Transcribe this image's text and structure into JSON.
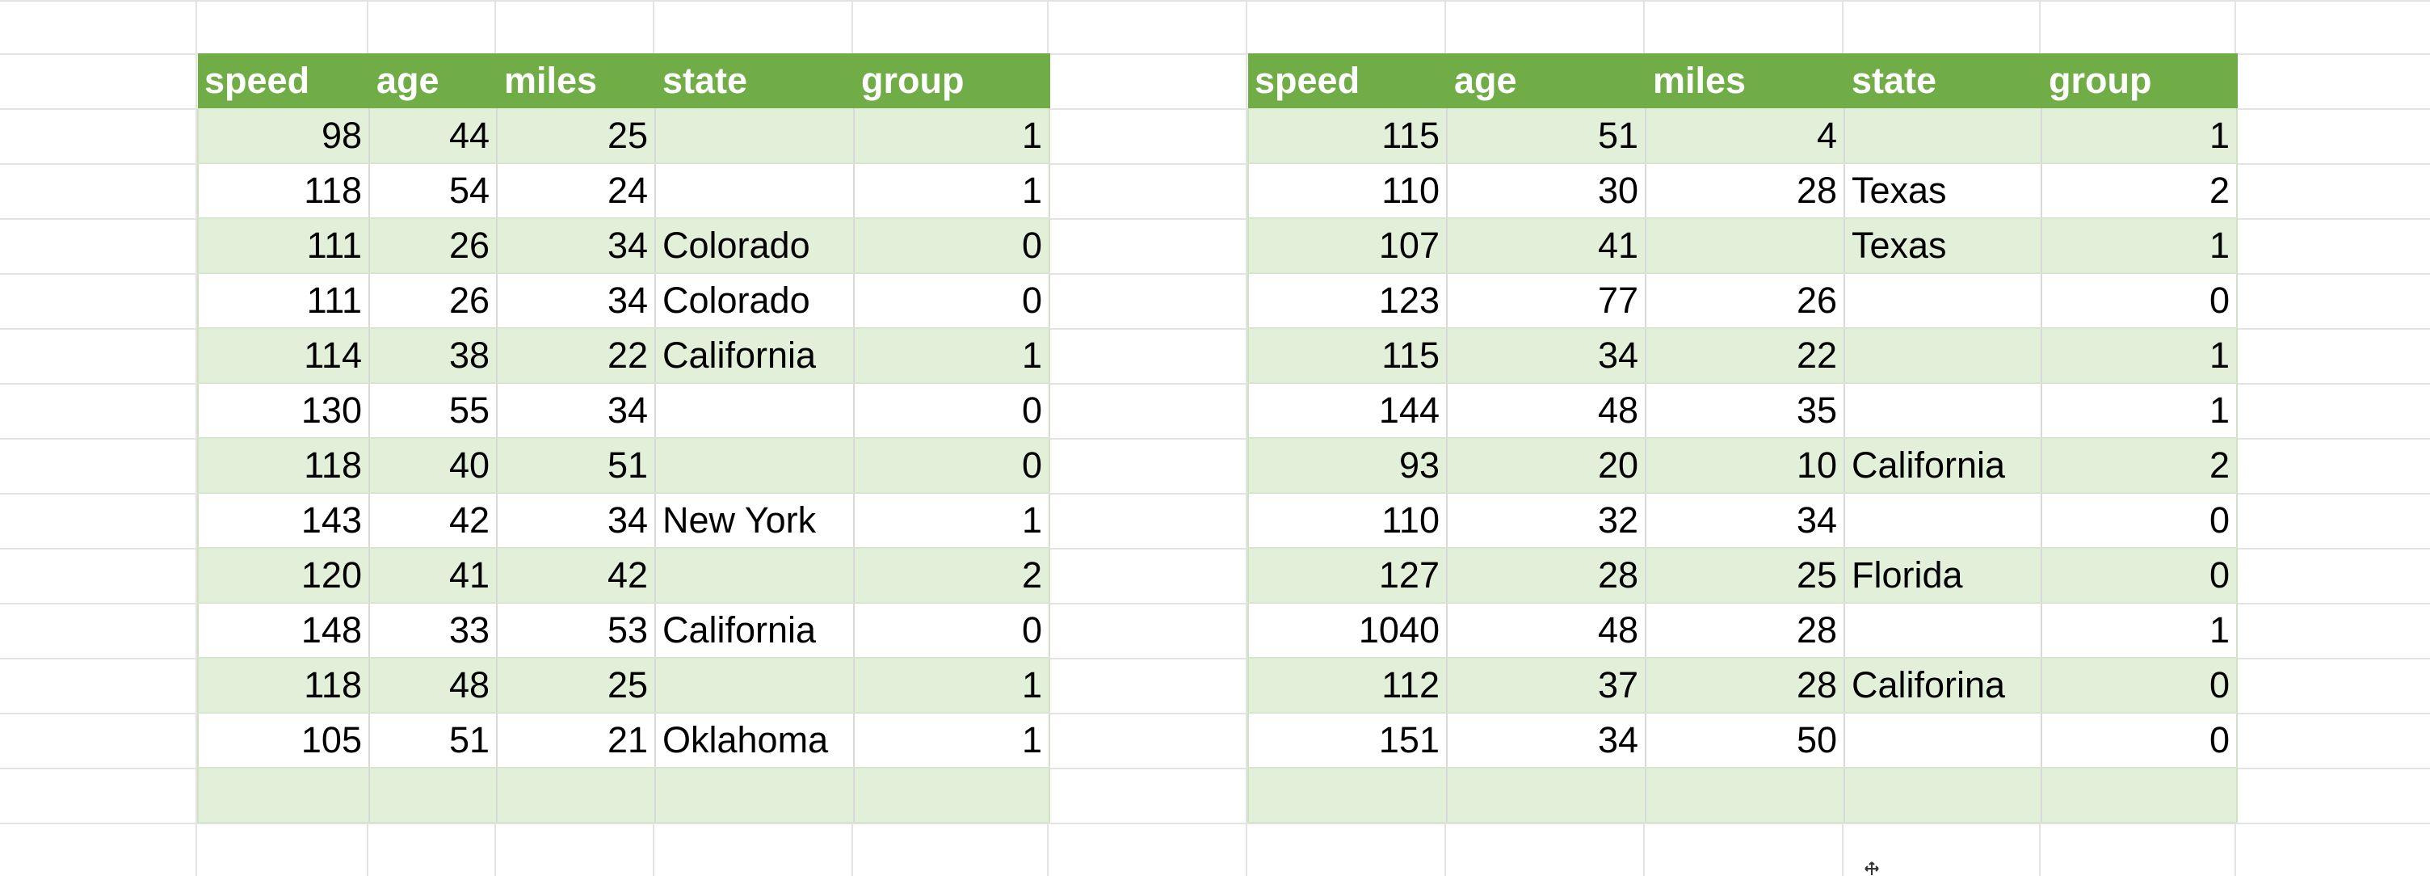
{
  "table_left": {
    "headers": [
      "speed",
      "age",
      "miles",
      "state",
      "group"
    ],
    "rows": [
      [
        "98",
        "44",
        "25",
        "",
        "1"
      ],
      [
        "118",
        "54",
        "24",
        "",
        "1"
      ],
      [
        "111",
        "26",
        "34",
        "Colorado",
        "0"
      ],
      [
        "111",
        "26",
        "34",
        "Colorado",
        "0"
      ],
      [
        "114",
        "38",
        "22",
        "California",
        "1"
      ],
      [
        "130",
        "55",
        "34",
        "",
        "0"
      ],
      [
        "118",
        "40",
        "51",
        "",
        "0"
      ],
      [
        "143",
        "42",
        "34",
        "New York",
        "1"
      ],
      [
        "120",
        "41",
        "42",
        "",
        "2"
      ],
      [
        "148",
        "33",
        "53",
        "California",
        "0"
      ],
      [
        "118",
        "48",
        "25",
        "",
        "1"
      ],
      [
        "105",
        "51",
        "21",
        "Oklahoma",
        "1"
      ],
      [
        "",
        "",
        "",
        "",
        ""
      ]
    ]
  },
  "table_right": {
    "headers": [
      "speed",
      "age",
      "miles",
      "state",
      "group"
    ],
    "rows": [
      [
        "115",
        "51",
        "4",
        "",
        "1"
      ],
      [
        "110",
        "30",
        "28",
        "Texas",
        "2"
      ],
      [
        "107",
        "41",
        "",
        "Texas",
        "1"
      ],
      [
        "123",
        "77",
        "26",
        "",
        "0"
      ],
      [
        "115",
        "34",
        "22",
        "",
        "1"
      ],
      [
        "144",
        "48",
        "35",
        "",
        "1"
      ],
      [
        "93",
        "20",
        "10",
        "California",
        "2"
      ],
      [
        "110",
        "32",
        "34",
        "",
        "0"
      ],
      [
        "127",
        "28",
        "25",
        "Florida",
        "0"
      ],
      [
        "1040",
        "48",
        "28",
        "",
        "1"
      ],
      [
        "112",
        "37",
        "28",
        "Califorina",
        "0"
      ],
      [
        "151",
        "34",
        "50",
        "",
        "0"
      ],
      [
        "",
        "",
        "",
        "",
        ""
      ]
    ]
  },
  "colors": {
    "header_bg": "#70ad47",
    "band_bg": "#e2efd9",
    "header_text": "#ffffff",
    "grid": "#e3e3e3"
  },
  "icons": {
    "cursor": "move-cursor-icon"
  }
}
